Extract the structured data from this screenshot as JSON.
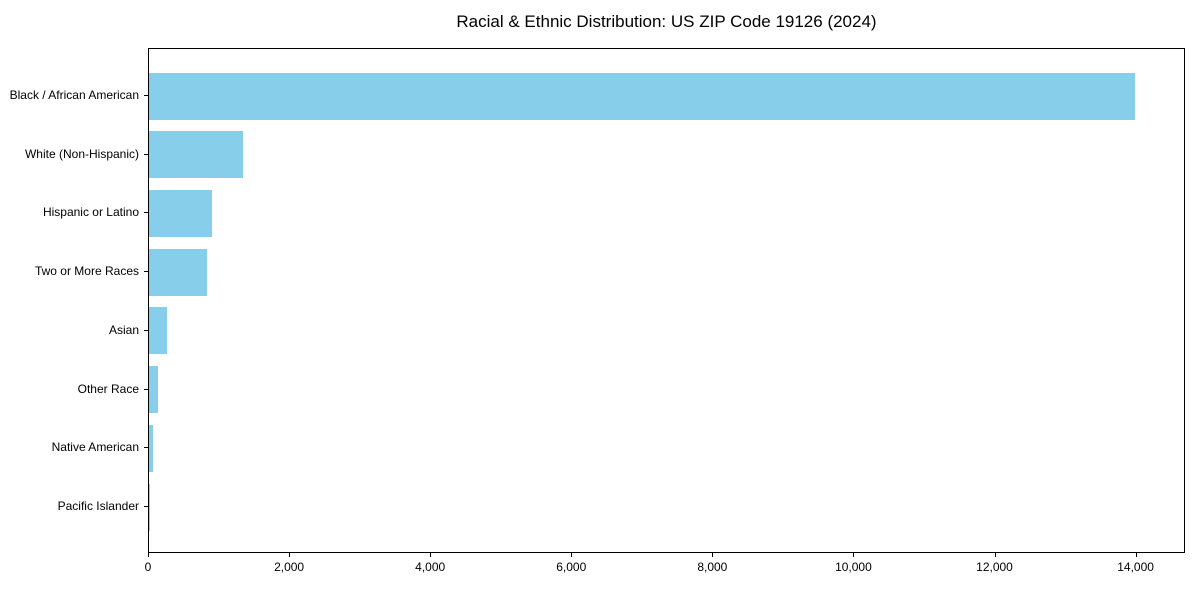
{
  "chart_data": {
    "type": "bar",
    "orientation": "horizontal",
    "title": "Racial & Ethnic Distribution: US ZIP Code 19126 (2024)",
    "categories": [
      "Black / African American",
      "White (Non-Hispanic)",
      "Hispanic or Latino",
      "Two or More Races",
      "Asian",
      "Other Race",
      "Native American",
      "Pacific Islander"
    ],
    "values": [
      14000,
      1330,
      890,
      820,
      260,
      130,
      60,
      10
    ],
    "xlabel": "",
    "ylabel": "",
    "xlim": [
      0,
      14700
    ],
    "x_ticks": [
      0,
      2000,
      4000,
      6000,
      8000,
      10000,
      12000,
      14000
    ],
    "x_tick_labels": [
      "0",
      "2,000",
      "4,000",
      "6,000",
      "8,000",
      "10,000",
      "12,000",
      "14,000"
    ],
    "bar_color": "#87CEEB",
    "axis_color": "#000000",
    "grid": false,
    "legend": false
  }
}
